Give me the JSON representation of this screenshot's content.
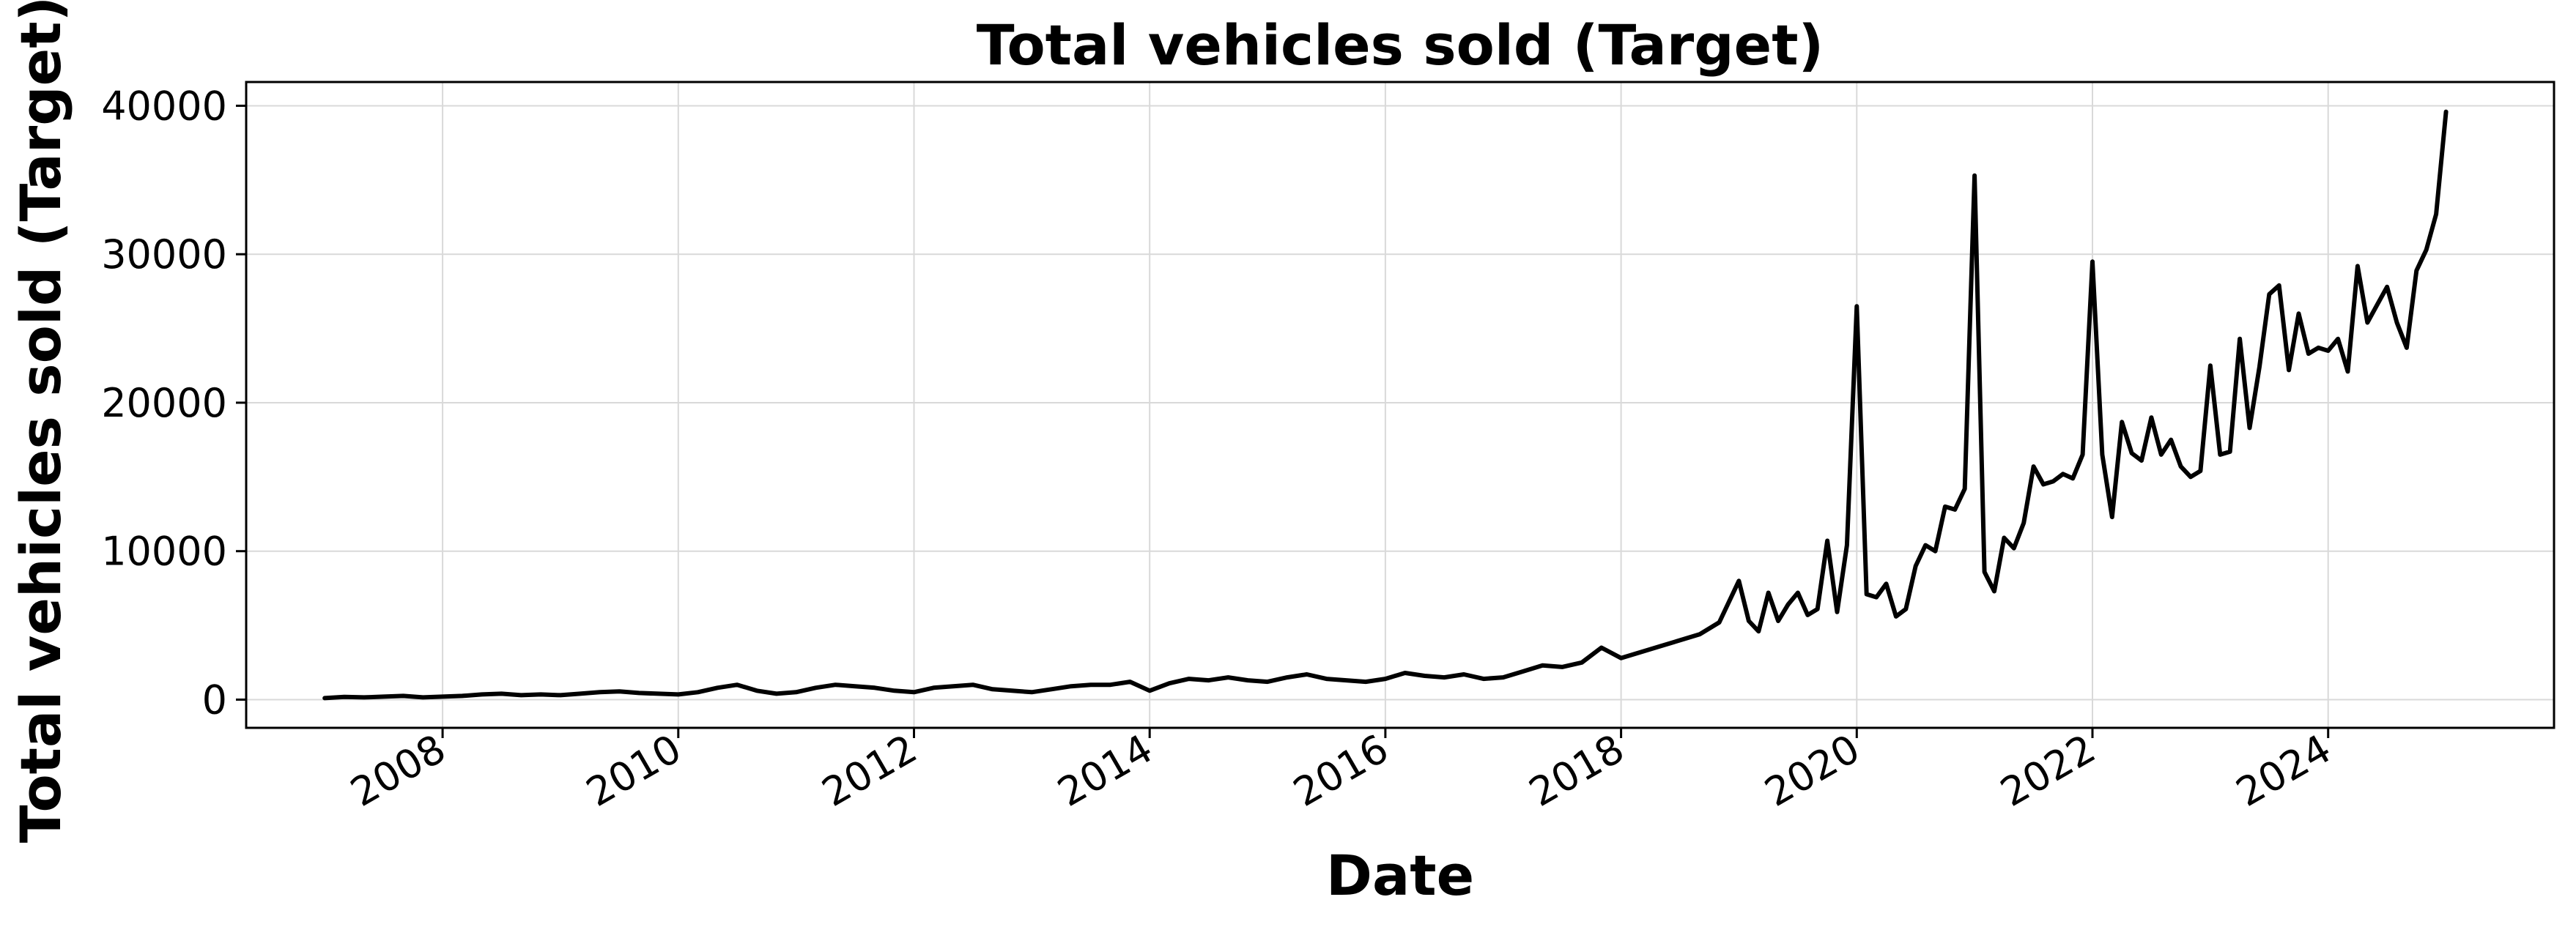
{
  "chart_data": {
    "type": "line",
    "title": "Total vehicles sold (Target)",
    "xlabel": "Date",
    "ylabel": "Total vehicles sold (Target)",
    "x_ticks": [
      "2008",
      "2010",
      "2012",
      "2014",
      "2016",
      "2018",
      "2020",
      "2022",
      "2024"
    ],
    "y_ticks": [
      "0",
      "10000",
      "20000",
      "30000",
      "40000"
    ],
    "ylim": [
      -1900,
      41600
    ],
    "xlim": [
      "2006-05",
      "2025-12"
    ],
    "grid": true,
    "line_color": "#000000",
    "series": [
      {
        "x": [
          "2007-01",
          "2007-03",
          "2007-05",
          "2007-07",
          "2007-09",
          "2007-11",
          "2008-01",
          "2008-03",
          "2008-05",
          "2008-07",
          "2008-09",
          "2008-11",
          "2009-01",
          "2009-03",
          "2009-05",
          "2009-07",
          "2009-09",
          "2009-11",
          "2010-01",
          "2010-03",
          "2010-05",
          "2010-07",
          "2010-09",
          "2010-11",
          "2011-01",
          "2011-03",
          "2011-05",
          "2011-07",
          "2011-09",
          "2011-11",
          "2012-01",
          "2012-03",
          "2012-05",
          "2012-07",
          "2012-09",
          "2012-11",
          "2013-01",
          "2013-03",
          "2013-05",
          "2013-07",
          "2013-09",
          "2013-11",
          "2014-01",
          "2014-03",
          "2014-05",
          "2014-07",
          "2014-09",
          "2014-11",
          "2015-01",
          "2015-03",
          "2015-05",
          "2015-07",
          "2015-09",
          "2015-11",
          "2016-01",
          "2016-03",
          "2016-05",
          "2016-07",
          "2016-09",
          "2016-11",
          "2017-01",
          "2017-03",
          "2017-05",
          "2017-07",
          "2017-09",
          "2017-11",
          "2018-01",
          "2018-03",
          "2018-05",
          "2018-07",
          "2018-09",
          "2018-11",
          "2019-01",
          "2019-02",
          "2019-03",
          "2019-04",
          "2019-05",
          "2019-06",
          "2019-07",
          "2019-08",
          "2019-09",
          "2019-10",
          "2019-11",
          "2019-12",
          "2020-01",
          "2020-02",
          "2020-03",
          "2020-04",
          "2020-05",
          "2020-06",
          "2020-07",
          "2020-08",
          "2020-09",
          "2020-10",
          "2020-11",
          "2020-12",
          "2021-01",
          "2021-02",
          "2021-03",
          "2021-04",
          "2021-05",
          "2021-06",
          "2021-07",
          "2021-08",
          "2021-09",
          "2021-10",
          "2021-11",
          "2021-12",
          "2022-01",
          "2022-02",
          "2022-03",
          "2022-04",
          "2022-05",
          "2022-06",
          "2022-07",
          "2022-08",
          "2022-09",
          "2022-10",
          "2022-11",
          "2022-12",
          "2023-01",
          "2023-02",
          "2023-03",
          "2023-04",
          "2023-05",
          "2023-06",
          "2023-07",
          "2023-08",
          "2023-09",
          "2023-10",
          "2023-11",
          "2023-12",
          "2024-01",
          "2024-02",
          "2024-03",
          "2024-04",
          "2024-05",
          "2024-06",
          "2024-07",
          "2024-08",
          "2024-09",
          "2024-10",
          "2024-11",
          "2024-12",
          "2025-01"
        ],
        "values": [
          100,
          180,
          150,
          200,
          250,
          150,
          200,
          250,
          350,
          400,
          300,
          350,
          300,
          400,
          500,
          550,
          450,
          400,
          350,
          500,
          800,
          1000,
          600,
          400,
          500,
          800,
          1000,
          900,
          800,
          600,
          500,
          800,
          900,
          1000,
          700,
          600,
          500,
          700,
          900,
          1000,
          1000,
          1200,
          600,
          1100,
          1400,
          1300,
          1500,
          1300,
          1200,
          1500,
          1700,
          1400,
          1300,
          1200,
          1400,
          1800,
          1600,
          1500,
          1700,
          1400,
          1500,
          1900,
          2300,
          2200,
          2500,
          3500,
          2800,
          3200,
          3600,
          4000,
          4400,
          5200,
          8000,
          5300,
          4600,
          7200,
          5300,
          6400,
          7200,
          5700,
          6100,
          10700,
          5900,
          10400,
          26500,
          7100,
          6900,
          7800,
          5600,
          6100,
          9000,
          10400,
          10000,
          13000,
          12800,
          14200,
          35300,
          8600,
          7300,
          10900,
          10200,
          11900,
          15700,
          14500,
          14700,
          15200,
          14900,
          16500,
          29500,
          16500,
          12300,
          18700,
          16600,
          16100,
          19000,
          16500,
          17500,
          15700,
          15000,
          15400,
          22500,
          16500,
          16700,
          24300,
          18300,
          22400,
          27300,
          27900,
          22200,
          26000,
          23300,
          23700,
          23500,
          24300,
          22100,
          29200,
          25400,
          26600,
          27800,
          25400,
          23700,
          28900,
          30300,
          32700,
          39600
        ]
      }
    ]
  }
}
